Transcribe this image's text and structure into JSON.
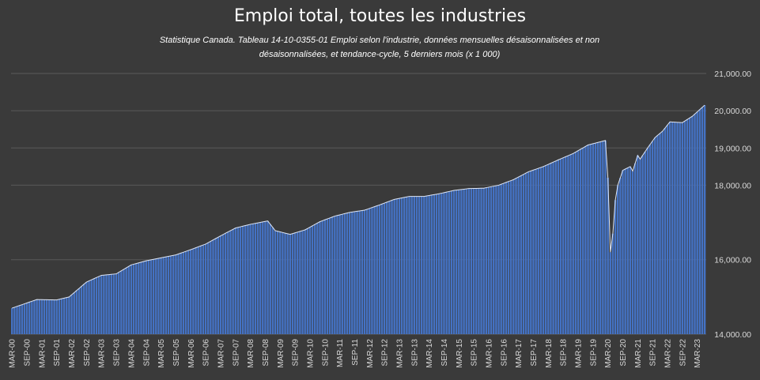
{
  "chart_data": {
    "type": "area",
    "title": "Emploi total, toutes les industries",
    "subtitle": "Statistique Canada. Tableau 14-10-0355-01 Emploi selon l'industrie, données mensuelles désaisonnalisées et non désaisonnalisées, et tendance-cycle, 5 derniers mois (x 1 000)",
    "xlabel": "",
    "ylabel": "",
    "ylim": [
      14000,
      21000
    ],
    "yticks": [
      "14,000.00",
      "16,000.00",
      "18,000.00",
      "19,000.00",
      "20,000.00",
      "21,000.00"
    ],
    "ytick_values": [
      14000,
      16000,
      18000,
      19000,
      20000,
      21000
    ],
    "xtick_labels": [
      "MAR-00",
      "SEP-00",
      "MAR-01",
      "SEP-01",
      "MAR-02",
      "SEP-02",
      "MAR-03",
      "SEP-03",
      "MAR-04",
      "SEP-04",
      "MAR-05",
      "SEP-05",
      "MAR-06",
      "SEP-06",
      "MAR-07",
      "SEP-07",
      "MAR-08",
      "SEP-08",
      "MAR-09",
      "SEP-09",
      "MAR-10",
      "SEP-10",
      "MAR-11",
      "SEP-11",
      "MAR-12",
      "SEP-12",
      "MAR-13",
      "SEP-13",
      "MAR-14",
      "SEP-14",
      "MAR-15",
      "SEP-15",
      "MAR-16",
      "SEP-16",
      "MAR-17",
      "SEP-17",
      "MAR-18",
      "SEP-18",
      "MAR-19",
      "SEP-19",
      "MAR-20",
      "SEP-20",
      "MAR-21",
      "SEP-21",
      "MAR-22",
      "SEP-22",
      "MAR-23"
    ],
    "grid": true,
    "fill_color": "#4472c4",
    "line_color": "#ffffff",
    "background": "#3a3a3a",
    "x_start": "2000-03",
    "x_end": "2023-06",
    "anchors": [
      [
        "2000-03",
        14700
      ],
      [
        "2001-01",
        14930
      ],
      [
        "2001-09",
        14920
      ],
      [
        "2002-02",
        15000
      ],
      [
        "2002-09",
        15400
      ],
      [
        "2003-03",
        15580
      ],
      [
        "2003-09",
        15620
      ],
      [
        "2004-03",
        15860
      ],
      [
        "2004-09",
        15970
      ],
      [
        "2005-03",
        16050
      ],
      [
        "2005-09",
        16130
      ],
      [
        "2006-03",
        16270
      ],
      [
        "2006-09",
        16420
      ],
      [
        "2007-03",
        16640
      ],
      [
        "2007-09",
        16850
      ],
      [
        "2008-03",
        16950
      ],
      [
        "2008-10",
        17040
      ],
      [
        "2009-01",
        16780
      ],
      [
        "2009-07",
        16680
      ],
      [
        "2010-01",
        16800
      ],
      [
        "2010-07",
        17020
      ],
      [
        "2011-01",
        17170
      ],
      [
        "2011-07",
        17270
      ],
      [
        "2012-01",
        17330
      ],
      [
        "2012-07",
        17470
      ],
      [
        "2013-01",
        17620
      ],
      [
        "2013-07",
        17700
      ],
      [
        "2014-01",
        17700
      ],
      [
        "2014-07",
        17770
      ],
      [
        "2015-01",
        17860
      ],
      [
        "2015-07",
        17910
      ],
      [
        "2016-01",
        17920
      ],
      [
        "2016-07",
        18000
      ],
      [
        "2017-01",
        18150
      ],
      [
        "2017-07",
        18360
      ],
      [
        "2018-01",
        18500
      ],
      [
        "2018-07",
        18680
      ],
      [
        "2019-01",
        18850
      ],
      [
        "2019-07",
        19080
      ],
      [
        "2020-02",
        19200
      ],
      [
        "2020-03",
        18200
      ],
      [
        "2020-04",
        16200
      ],
      [
        "2020-05",
        16700
      ],
      [
        "2020-06",
        17600
      ],
      [
        "2020-07",
        18000
      ],
      [
        "2020-09",
        18400
      ],
      [
        "2020-12",
        18500
      ],
      [
        "2021-01",
        18380
      ],
      [
        "2021-03",
        18800
      ],
      [
        "2021-04",
        18700
      ],
      [
        "2021-07",
        19000
      ],
      [
        "2021-10",
        19280
      ],
      [
        "2022-01",
        19450
      ],
      [
        "2022-04",
        19700
      ],
      [
        "2022-09",
        19680
      ],
      [
        "2023-01",
        19850
      ],
      [
        "2023-06",
        20150
      ]
    ]
  }
}
